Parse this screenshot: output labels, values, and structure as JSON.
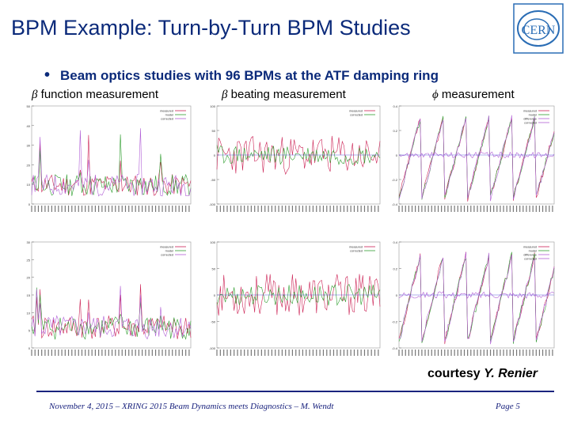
{
  "slide": {
    "title": "BPM Example: Turn-by-Turn BPM Studies",
    "bullet": "Beam optics studies with 96 BPMs at the ATF damping ring",
    "sections": [
      {
        "symbol": "β",
        "label": " function measurement"
      },
      {
        "symbol": "β",
        "label": " beating measurement"
      },
      {
        "symbol": "ϕ",
        "label": " measurement"
      }
    ],
    "courtesy_prefix": "courtesy ",
    "courtesy_name": "Y. Renier",
    "footer": "November 4, 2015 – XRING 2015 Beam Dynamics meets Diagnostics – M. Wendt",
    "page": "Page  5",
    "logo_text": "CERN",
    "colors": {
      "title": "#0b2a7a",
      "measured": "#cc2255",
      "model": "#2f9e2f",
      "corrected": "#b15fd6",
      "logo": "#2a6db5"
    }
  },
  "chart_data": [
    {
      "type": "line",
      "position": "top-left",
      "ylim": [
        0,
        50
      ],
      "yticks": [
        "0",
        "10",
        "20",
        "30",
        "40",
        "50"
      ],
      "legend": [
        "measured",
        "model",
        "corrected"
      ],
      "seed": 11,
      "points": 96
    },
    {
      "type": "line",
      "position": "top-middle",
      "ylim": [
        -100,
        100
      ],
      "yticks": [
        "-100",
        "-50",
        "0",
        "50",
        "100"
      ],
      "legend": [
        "measured",
        "corrected"
      ],
      "seed": 23,
      "points": 96
    },
    {
      "type": "line",
      "position": "top-right",
      "ylim": [
        -0.4,
        0.4
      ],
      "yticks": [
        "-0.4",
        "-0.2",
        "0",
        "0.2",
        "0.4"
      ],
      "legend": [
        "measured",
        "model",
        "difference",
        "corrected"
      ],
      "seed": 37,
      "points": 96
    },
    {
      "type": "line",
      "position": "bottom-left",
      "ylim": [
        0,
        30
      ],
      "yticks": [
        "0",
        "5",
        "10",
        "15",
        "20",
        "25",
        "30"
      ],
      "legend": [
        "measured",
        "model",
        "corrected"
      ],
      "seed": 41,
      "points": 96
    },
    {
      "type": "line",
      "position": "bottom-middle",
      "ylim": [
        -100,
        100
      ],
      "yticks": [
        "-100",
        "-50",
        "0",
        "50",
        "100"
      ],
      "legend": [
        "measured",
        "corrected"
      ],
      "seed": 53,
      "points": 96
    },
    {
      "type": "line",
      "position": "bottom-right",
      "ylim": [
        -0.4,
        0.4
      ],
      "yticks": [
        "-0.4",
        "-0.2",
        "0",
        "0.2",
        "0.4"
      ],
      "legend": [
        "measured",
        "model",
        "difference",
        "corrected"
      ],
      "seed": 67,
      "points": 96
    }
  ]
}
